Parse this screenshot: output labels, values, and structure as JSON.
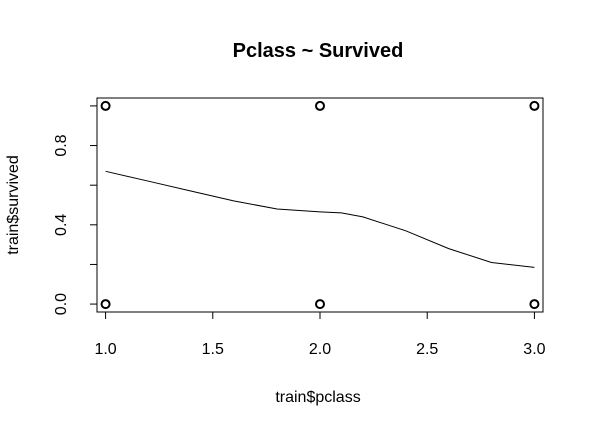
{
  "chart_data": {
    "type": "scatter",
    "title": "Pclass ~ Survived",
    "xlabel": "train$pclass",
    "ylabel": "train$survived",
    "xlim": [
      0.96,
      3.04
    ],
    "ylim": [
      -0.04,
      1.04
    ],
    "x_ticks": [
      1.0,
      1.5,
      2.0,
      2.5,
      3.0
    ],
    "x_tick_labels": [
      "1.0",
      "1.5",
      "2.0",
      "2.5",
      "3.0"
    ],
    "y_ticks": [
      0.0,
      0.2,
      0.4,
      0.6,
      0.8,
      1.0
    ],
    "y_tick_labels": [
      "0.0",
      "",
      "0.4",
      "",
      "0.8",
      ""
    ],
    "grid": false,
    "points": {
      "x": [
        1,
        1,
        2,
        2,
        3,
        3
      ],
      "y": [
        0,
        1,
        0,
        1,
        0,
        1
      ]
    },
    "smooth_line": {
      "x": [
        1.0,
        1.2,
        1.4,
        1.6,
        1.8,
        2.0,
        2.1,
        2.2,
        2.4,
        2.6,
        2.8,
        3.0
      ],
      "y": [
        0.67,
        0.62,
        0.57,
        0.52,
        0.48,
        0.465,
        0.46,
        0.44,
        0.37,
        0.28,
        0.21,
        0.185
      ]
    }
  }
}
